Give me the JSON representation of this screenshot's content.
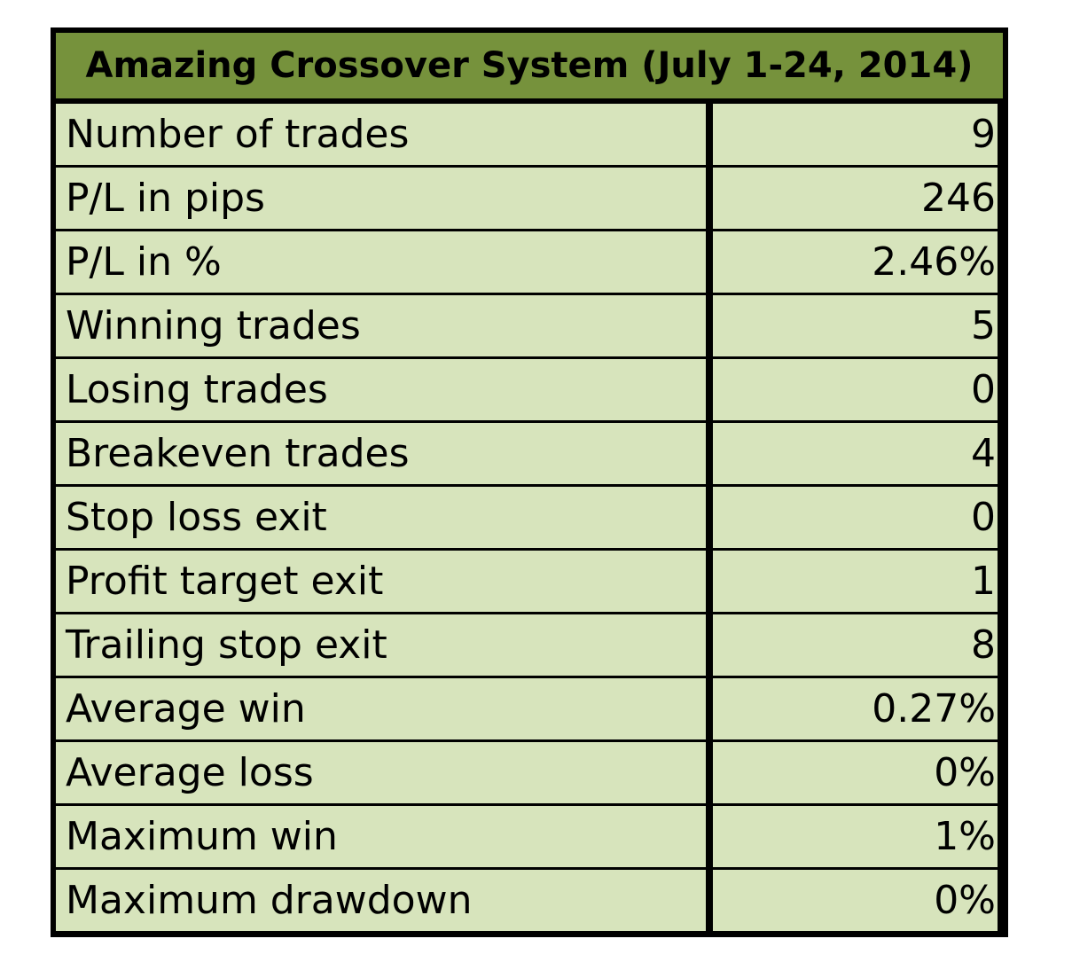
{
  "table": {
    "title": "Amazing Crossover System (July 1-24, 2014)",
    "rows": [
      {
        "label": "Number of trades",
        "value": "9"
      },
      {
        "label": "P/L in pips",
        "value": "246"
      },
      {
        "label": "P/L in %",
        "value": "2.46%"
      },
      {
        "label": "Winning trades",
        "value": "5"
      },
      {
        "label": "Losing trades",
        "value": "0"
      },
      {
        "label": "Breakeven trades",
        "value": "4"
      },
      {
        "label": "Stop loss exit",
        "value": "0"
      },
      {
        "label": "Profit target exit",
        "value": "1"
      },
      {
        "label": "Trailing stop exit",
        "value": "8"
      },
      {
        "label": "Average win",
        "value": "0.27%"
      },
      {
        "label": "Average loss",
        "value": "0%"
      },
      {
        "label": "Maximum win",
        "value": "1%"
      },
      {
        "label": "Maximum drawdown",
        "value": "0%"
      }
    ]
  },
  "colors": {
    "header_bg": "#76923c",
    "cell_bg": "#d7e4bc",
    "border": "#000000"
  }
}
